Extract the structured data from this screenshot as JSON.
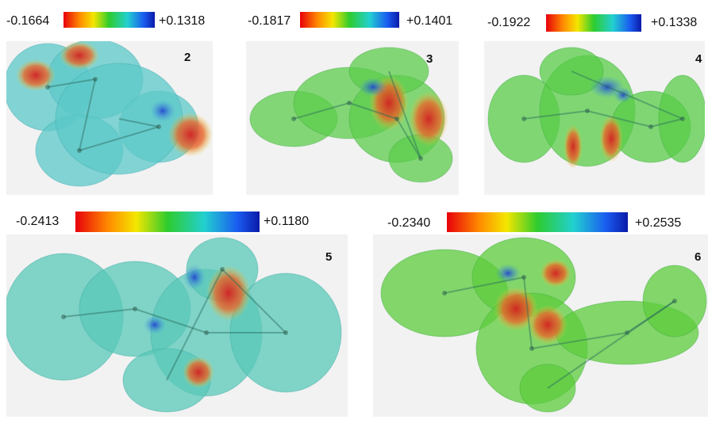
{
  "panels": [
    {
      "label": "2",
      "min": "-0.1664",
      "max": "+0.1318"
    },
    {
      "label": "3",
      "min": "-0.1817",
      "max": "+0.1401"
    },
    {
      "label": "4",
      "min": "-0.1922",
      "max": "+0.1338"
    },
    {
      "label": "5",
      "min": "-0.2413",
      "max": "+0.1180"
    },
    {
      "label": "6",
      "min": "-0.2340",
      "max": "+0.2535"
    }
  ]
}
